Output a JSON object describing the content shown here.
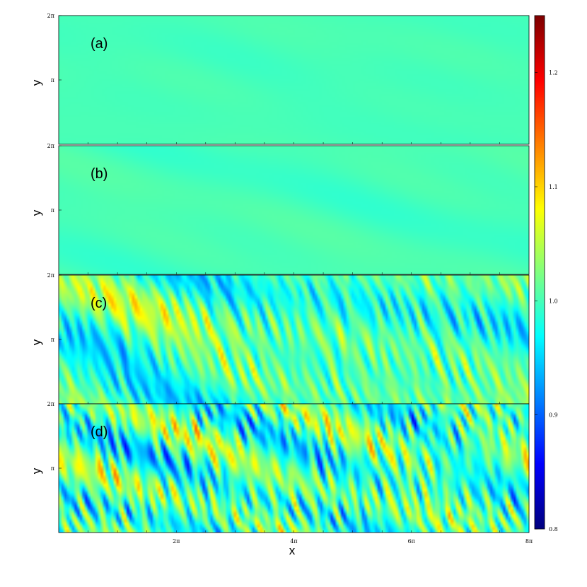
{
  "chart_data": {
    "type": "heatmap",
    "xlabel": "x",
    "ylabel": "y",
    "xlim": [
      0,
      25.1327
    ],
    "ylim": [
      0,
      6.2832
    ],
    "x_ticks": [
      {
        "value": 6.2832,
        "label": "2π"
      },
      {
        "value": 12.5664,
        "label": "4π"
      },
      {
        "value": 18.8496,
        "label": "6π"
      },
      {
        "value": 25.1327,
        "label": "8π"
      }
    ],
    "y_ticks": [
      {
        "value": 3.1416,
        "label": "π"
      },
      {
        "value": 6.2832,
        "label": "2π"
      }
    ],
    "colormap": "jet",
    "colorbar": {
      "min": 0.8,
      "max": 1.25,
      "ticks": [
        0.8,
        0.9,
        1.0,
        1.1,
        1.2
      ]
    },
    "panels": [
      {
        "label": "(a)",
        "amplitude": 0.008,
        "fine_amp": 0.0,
        "desc": "nearly uniform field close to 1.0"
      },
      {
        "label": "(b)",
        "amplitude": 0.028,
        "fine_amp": 0.0,
        "desc": "weak large-scale streaks"
      },
      {
        "label": "(c)",
        "amplitude": 0.11,
        "fine_amp": 0.06,
        "desc": "strong oblique streaky structures"
      },
      {
        "label": "(d)",
        "amplitude": 0.1,
        "fine_amp": 0.09,
        "desc": "fully turbulent small-scale field"
      }
    ]
  }
}
